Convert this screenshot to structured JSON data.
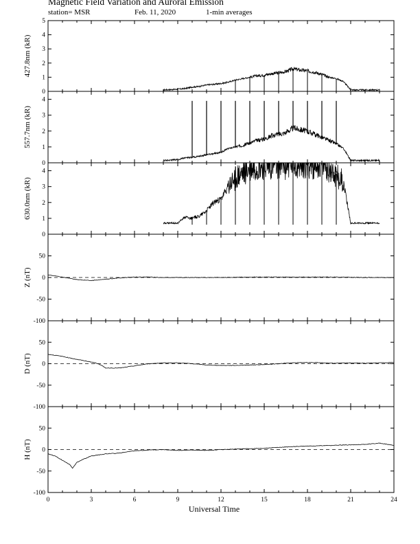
{
  "header": {
    "title": "Magnetic Field Variation and Auroral Emission",
    "station": "station= MSR",
    "date": "Feb. 11, 2020",
    "averaging": "1-min averages"
  },
  "chart_data": {
    "type": "line",
    "xlabel": "Universal Time",
    "xlim": [
      0,
      24
    ],
    "xticks": [
      0,
      3,
      6,
      9,
      12,
      15,
      18,
      21,
      24
    ],
    "panels": [
      {
        "id": "p4278",
        "ylabel": "427.8nm (kR)",
        "ylim": [
          0,
          5
        ],
        "yticks": [
          0,
          1,
          2,
          3,
          4,
          5
        ],
        "points": [
          [
            8.0,
            0.1
          ],
          [
            9.0,
            0.15
          ],
          [
            9.5,
            0.2
          ],
          [
            10.0,
            0.3
          ],
          [
            10.5,
            0.35
          ],
          [
            11.0,
            0.45
          ],
          [
            11.5,
            0.5
          ],
          [
            12.0,
            0.55
          ],
          [
            12.5,
            0.65
          ],
          [
            13.0,
            0.8
          ],
          [
            13.5,
            0.9
          ],
          [
            14.0,
            1.0
          ],
          [
            14.5,
            1.1
          ],
          [
            15.0,
            1.15
          ],
          [
            15.5,
            1.25
          ],
          [
            16.0,
            1.3
          ],
          [
            16.5,
            1.4
          ],
          [
            17.0,
            1.6
          ],
          [
            17.5,
            1.5
          ],
          [
            18.0,
            1.45
          ],
          [
            18.5,
            1.35
          ],
          [
            19.0,
            1.2
          ],
          [
            19.5,
            1.0
          ],
          [
            20.0,
            0.9
          ],
          [
            20.5,
            0.7
          ],
          [
            21.0,
            0.1
          ],
          [
            22.0,
            0.1
          ],
          [
            23.0,
            0.1
          ]
        ],
        "spikes": [],
        "dropouts": [
          13.0,
          14.0,
          15.0,
          16.0,
          17.0,
          18.0,
          19.0,
          20.0
        ]
      },
      {
        "id": "p5577",
        "ylabel": "557.7nm (kR)",
        "ylim": [
          0,
          4.5
        ],
        "yticks": [
          0,
          1,
          2,
          3,
          4
        ],
        "points": [
          [
            8.0,
            0.15
          ],
          [
            9.0,
            0.2
          ],
          [
            9.5,
            0.3
          ],
          [
            10.0,
            0.35
          ],
          [
            11.0,
            0.5
          ],
          [
            12.0,
            0.65
          ],
          [
            12.5,
            0.9
          ],
          [
            13.0,
            1.0
          ],
          [
            13.5,
            1.1
          ],
          [
            14.0,
            1.25
          ],
          [
            14.5,
            1.4
          ],
          [
            15.0,
            1.5
          ],
          [
            15.5,
            1.7
          ],
          [
            16.0,
            1.8
          ],
          [
            16.5,
            1.9
          ],
          [
            17.0,
            2.2
          ],
          [
            17.5,
            2.1
          ],
          [
            18.0,
            2.0
          ],
          [
            18.5,
            1.8
          ],
          [
            19.0,
            1.6
          ],
          [
            19.5,
            1.4
          ],
          [
            20.0,
            1.2
          ],
          [
            20.5,
            0.9
          ],
          [
            21.0,
            0.15
          ],
          [
            22.0,
            0.15
          ],
          [
            23.0,
            0.15
          ]
        ],
        "spikes": [
          10.0,
          11.0,
          12.0,
          13.0,
          14.0,
          15.0,
          16.0,
          17.0,
          18.0,
          19.0,
          20.0
        ],
        "spike_top": 3.9,
        "dropouts": []
      },
      {
        "id": "p6300",
        "ylabel": "630.0nm (kR)",
        "ylim": [
          0,
          4.5
        ],
        "yticks": [
          0,
          1,
          2,
          3,
          4
        ],
        "points": [
          [
            8.0,
            0.7
          ],
          [
            9.0,
            0.7
          ],
          [
            9.5,
            1.1
          ],
          [
            10.0,
            1.0
          ],
          [
            10.5,
            1.15
          ],
          [
            11.0,
            1.5
          ],
          [
            11.5,
            2.0
          ],
          [
            12.0,
            2.2
          ],
          [
            12.5,
            3.0
          ],
          [
            13.0,
            3.5
          ],
          [
            13.5,
            3.8
          ],
          [
            14.0,
            4.1
          ],
          [
            14.5,
            4.3
          ],
          [
            15.0,
            4.3
          ],
          [
            15.5,
            4.3
          ],
          [
            16.0,
            4.4
          ],
          [
            17.0,
            4.4
          ],
          [
            18.0,
            4.4
          ],
          [
            19.0,
            4.4
          ],
          [
            19.5,
            4.2
          ],
          [
            20.0,
            3.8
          ],
          [
            20.5,
            3.3
          ],
          [
            21.0,
            0.7
          ],
          [
            22.0,
            0.7
          ],
          [
            23.0,
            0.7
          ]
        ],
        "spikes": [],
        "dropouts": [
          10.0,
          11.0,
          12.0,
          13.0,
          14.0,
          15.0,
          16.0,
          17.0,
          18.0,
          19.0,
          20.0
        ],
        "dropout_low": 0.6
      },
      {
        "id": "pZ",
        "ylabel": "Z (nT)",
        "ylim": [
          -100,
          100
        ],
        "yticks": [
          -100,
          -50,
          0,
          50
        ],
        "baseline": 0,
        "points": [
          [
            0,
            6
          ],
          [
            1,
            1
          ],
          [
            2,
            -5
          ],
          [
            3,
            -7
          ],
          [
            4,
            -4
          ],
          [
            5,
            -1
          ],
          [
            6,
            1
          ],
          [
            7,
            1
          ],
          [
            8,
            0
          ],
          [
            10,
            0
          ],
          [
            12,
            0
          ],
          [
            14,
            1
          ],
          [
            16,
            1
          ],
          [
            18,
            1
          ],
          [
            20,
            1
          ],
          [
            22,
            0
          ],
          [
            24,
            0
          ]
        ],
        "spikes": [],
        "dropouts": []
      },
      {
        "id": "pD",
        "ylabel": "D (nT)",
        "ylim": [
          -100,
          100
        ],
        "yticks": [
          -100,
          -50,
          0,
          50
        ],
        "baseline": 0,
        "points": [
          [
            0,
            22
          ],
          [
            1,
            17
          ],
          [
            2,
            10
          ],
          [
            3,
            4
          ],
          [
            3.5,
            0
          ],
          [
            4,
            -10
          ],
          [
            5,
            -10
          ],
          [
            6,
            -5
          ],
          [
            7,
            0
          ],
          [
            8,
            2
          ],
          [
            9,
            2
          ],
          [
            10,
            0
          ],
          [
            11,
            -3
          ],
          [
            12,
            -4
          ],
          [
            13,
            -4
          ],
          [
            14,
            -3
          ],
          [
            15,
            -2
          ],
          [
            16,
            0
          ],
          [
            17,
            2
          ],
          [
            18,
            3
          ],
          [
            19,
            2
          ],
          [
            20,
            1
          ],
          [
            21,
            2
          ],
          [
            22,
            1
          ],
          [
            23,
            2
          ],
          [
            24,
            3
          ]
        ],
        "spikes": [],
        "dropouts": []
      },
      {
        "id": "pH",
        "ylabel": "H (nT)",
        "ylim": [
          -100,
          100
        ],
        "yticks": [
          -100,
          -50,
          0,
          50
        ],
        "baseline": 0,
        "points": [
          [
            0,
            -10
          ],
          [
            0.5,
            -15
          ],
          [
            1,
            -25
          ],
          [
            1.5,
            -35
          ],
          [
            1.7,
            -43
          ],
          [
            2,
            -30
          ],
          [
            2.5,
            -22
          ],
          [
            3,
            -15
          ],
          [
            4,
            -10
          ],
          [
            5,
            -8
          ],
          [
            6,
            -3
          ],
          [
            7,
            -1
          ],
          [
            8,
            0
          ],
          [
            9,
            -2
          ],
          [
            10,
            -1
          ],
          [
            11,
            -2
          ],
          [
            12,
            0
          ],
          [
            13,
            1
          ],
          [
            14,
            2
          ],
          [
            15,
            3
          ],
          [
            16,
            5
          ],
          [
            17,
            7
          ],
          [
            18,
            8
          ],
          [
            19,
            9
          ],
          [
            20,
            10
          ],
          [
            21,
            11
          ],
          [
            22,
            12
          ],
          [
            23,
            15
          ],
          [
            24,
            10
          ]
        ],
        "spikes": [],
        "dropouts": []
      }
    ]
  }
}
